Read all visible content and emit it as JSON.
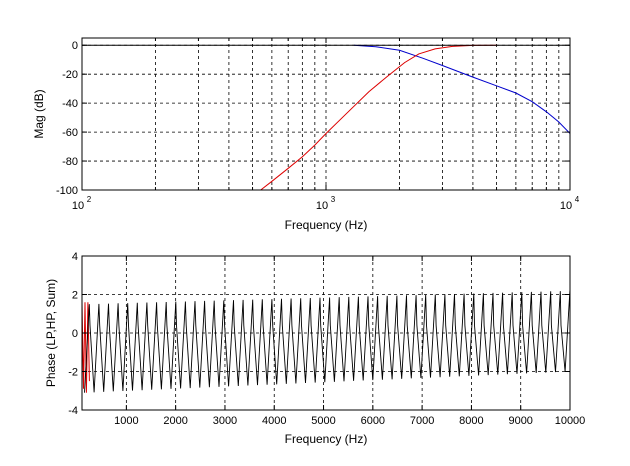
{
  "chart_data": [
    {
      "type": "line",
      "title": "",
      "xlabel": "Frequency (Hz)",
      "ylabel": "Mag (dB)",
      "xscale": "log",
      "xlim": [
        100,
        10000
      ],
      "ylim": [
        -100,
        5
      ],
      "grid": true,
      "x_ticks": [
        {
          "value": 100,
          "base": "10",
          "exp": "2"
        },
        {
          "value": 1000,
          "base": "10",
          "exp": "3"
        },
        {
          "value": 10000,
          "base": "10",
          "exp": "4"
        }
      ],
      "y_ticks": [
        "0",
        "-20",
        "-40",
        "-60",
        "-80",
        "-100"
      ],
      "y_tick_values": [
        0,
        -20,
        -40,
        -60,
        -80,
        -100
      ],
      "series": [
        {
          "color": "#0000cc",
          "x": [
            1300,
            1600,
            2000,
            2500,
            3000,
            4000,
            5000,
            6000,
            7000,
            8000,
            9000,
            10000
          ],
          "y": [
            0,
            -1,
            -3.5,
            -9,
            -14,
            -22,
            -28,
            -33,
            -39,
            -46,
            -53,
            -61
          ]
        },
        {
          "color": "#dd0000",
          "x": [
            540,
            600,
            700,
            800,
            900,
            1000,
            1200,
            1500,
            1800,
            2100,
            2400,
            2800,
            3300,
            4000,
            5000
          ],
          "y": [
            -100,
            -94,
            -85,
            -77,
            -69,
            -61,
            -48,
            -32,
            -21,
            -12,
            -6,
            -2.5,
            -0.8,
            -0.1,
            0
          ]
        },
        {
          "color": "#000000",
          "x": [
            100,
            10000
          ],
          "y": [
            0,
            0
          ]
        }
      ]
    },
    {
      "type": "line",
      "title": "",
      "xlabel": "Frequency (Hz)",
      "ylabel": "Phase (LP,HP, Sum)",
      "xlim": [
        100,
        10000
      ],
      "ylim": [
        -4,
        4
      ],
      "grid": true,
      "x_ticks": [
        "1000",
        "2000",
        "3000",
        "4000",
        "5000",
        "6000",
        "7000",
        "8000",
        "9000",
        "10000"
      ],
      "x_tick_values": [
        1000,
        2000,
        3000,
        4000,
        5000,
        6000,
        7000,
        8000,
        9000,
        10000
      ],
      "y_ticks": [
        "4",
        "2",
        "0",
        "-2",
        "-4"
      ],
      "y_tick_values": [
        4,
        2,
        0,
        -2,
        -4
      ],
      "series": [
        {
          "color": "#dd0000",
          "description_of_shape": "sawtooth wrap near low frequencies",
          "x": [
            100,
            130,
            160,
            190,
            220,
            250
          ],
          "y": [
            1.6,
            -2.9,
            1.6,
            -3.1,
            1.6,
            -2.5
          ]
        },
        {
          "color": "#000000",
          "x_start": 150,
          "x_end": 10000,
          "period_hz": 195,
          "peak_start": 1.5,
          "peak_end": 2.2,
          "trough_start": -3.1,
          "trough_end": -2.0
        }
      ]
    }
  ]
}
